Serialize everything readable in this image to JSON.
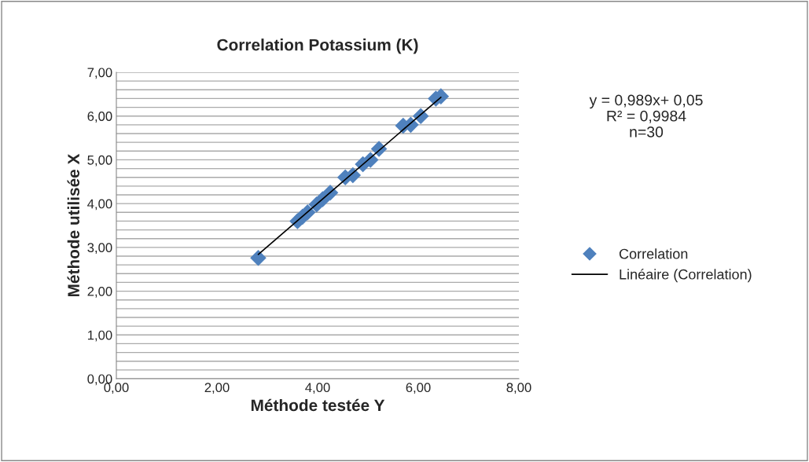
{
  "chart_data": {
    "type": "scatter",
    "title": "Correlation Potassium (K)",
    "xlabel": "Méthode testée Y",
    "ylabel": "Méthode utilisée X",
    "annotations": [
      "y = 0,989x+ 0,05\nR² = 0,9984\nn=30"
    ],
    "series": [
      {
        "name": "Correlation",
        "color": "#4f81bd",
        "marker": "diamond",
        "x": [
          2.82,
          3.6,
          3.7,
          3.8,
          3.98,
          4.1,
          4.25,
          4.55,
          4.7,
          4.9,
          5.05,
          5.22,
          5.7,
          5.85,
          6.05,
          6.35,
          6.45
        ],
        "values": [
          2.76,
          3.6,
          3.7,
          3.8,
          3.98,
          4.1,
          4.25,
          4.6,
          4.65,
          4.9,
          5.0,
          5.25,
          5.78,
          5.8,
          6.0,
          6.4,
          6.45
        ]
      },
      {
        "name": "Linéaire (Correlation)",
        "type": "line",
        "color": "#000000",
        "marker": "none",
        "line_style": "solid",
        "x": [
          2.82,
          6.45
        ],
        "values": [
          2.84,
          6.43
        ]
      }
    ],
    "xlim": [
      0,
      8
    ],
    "xticks": [
      {
        "value": 0,
        "label": "0,00"
      },
      {
        "value": 2,
        "label": "2,00"
      },
      {
        "value": 4,
        "label": "4,00"
      },
      {
        "value": 6,
        "label": "6,00"
      },
      {
        "value": 8,
        "label": "8,00"
      }
    ],
    "ylim": [
      0,
      7
    ],
    "yticks": [
      {
        "value": 0,
        "label": "0,00"
      },
      {
        "value": 0.2,
        "label": null
      },
      {
        "value": 0.4,
        "label": null
      },
      {
        "value": 0.6,
        "label": null
      },
      {
        "value": 0.8,
        "label": null
      },
      {
        "value": 1,
        "label": "1,00"
      },
      {
        "value": 1.2,
        "label": null
      },
      {
        "value": 1.4,
        "label": null
      },
      {
        "value": 1.6,
        "label": null
      },
      {
        "value": 1.8,
        "label": null
      },
      {
        "value": 2,
        "label": "2,00"
      },
      {
        "value": 2.2,
        "label": null
      },
      {
        "value": 2.4,
        "label": null
      },
      {
        "value": 2.6,
        "label": null
      },
      {
        "value": 2.8,
        "label": null
      },
      {
        "value": 3,
        "label": "3,00"
      },
      {
        "value": 3.2,
        "label": null
      },
      {
        "value": 3.4,
        "label": null
      },
      {
        "value": 3.6,
        "label": null
      },
      {
        "value": 3.8,
        "label": null
      },
      {
        "value": 4,
        "label": "4,00"
      },
      {
        "value": 4.2,
        "label": null
      },
      {
        "value": 4.4,
        "label": null
      },
      {
        "value": 4.6,
        "label": null
      },
      {
        "value": 4.8,
        "label": null
      },
      {
        "value": 5,
        "label": "5,00"
      },
      {
        "value": 5.2,
        "label": null
      },
      {
        "value": 5.4,
        "label": null
      },
      {
        "value": 5.6,
        "label": null
      },
      {
        "value": 5.8,
        "label": null
      },
      {
        "value": 6,
        "label": "6,00"
      },
      {
        "value": 6.2,
        "label": null
      },
      {
        "value": 6.4,
        "label": null
      },
      {
        "value": 6.6,
        "label": null
      },
      {
        "value": 6.8,
        "label": null
      },
      {
        "value": 7,
        "label": "7,00"
      }
    ],
    "grid": "y",
    "legend": "right"
  }
}
